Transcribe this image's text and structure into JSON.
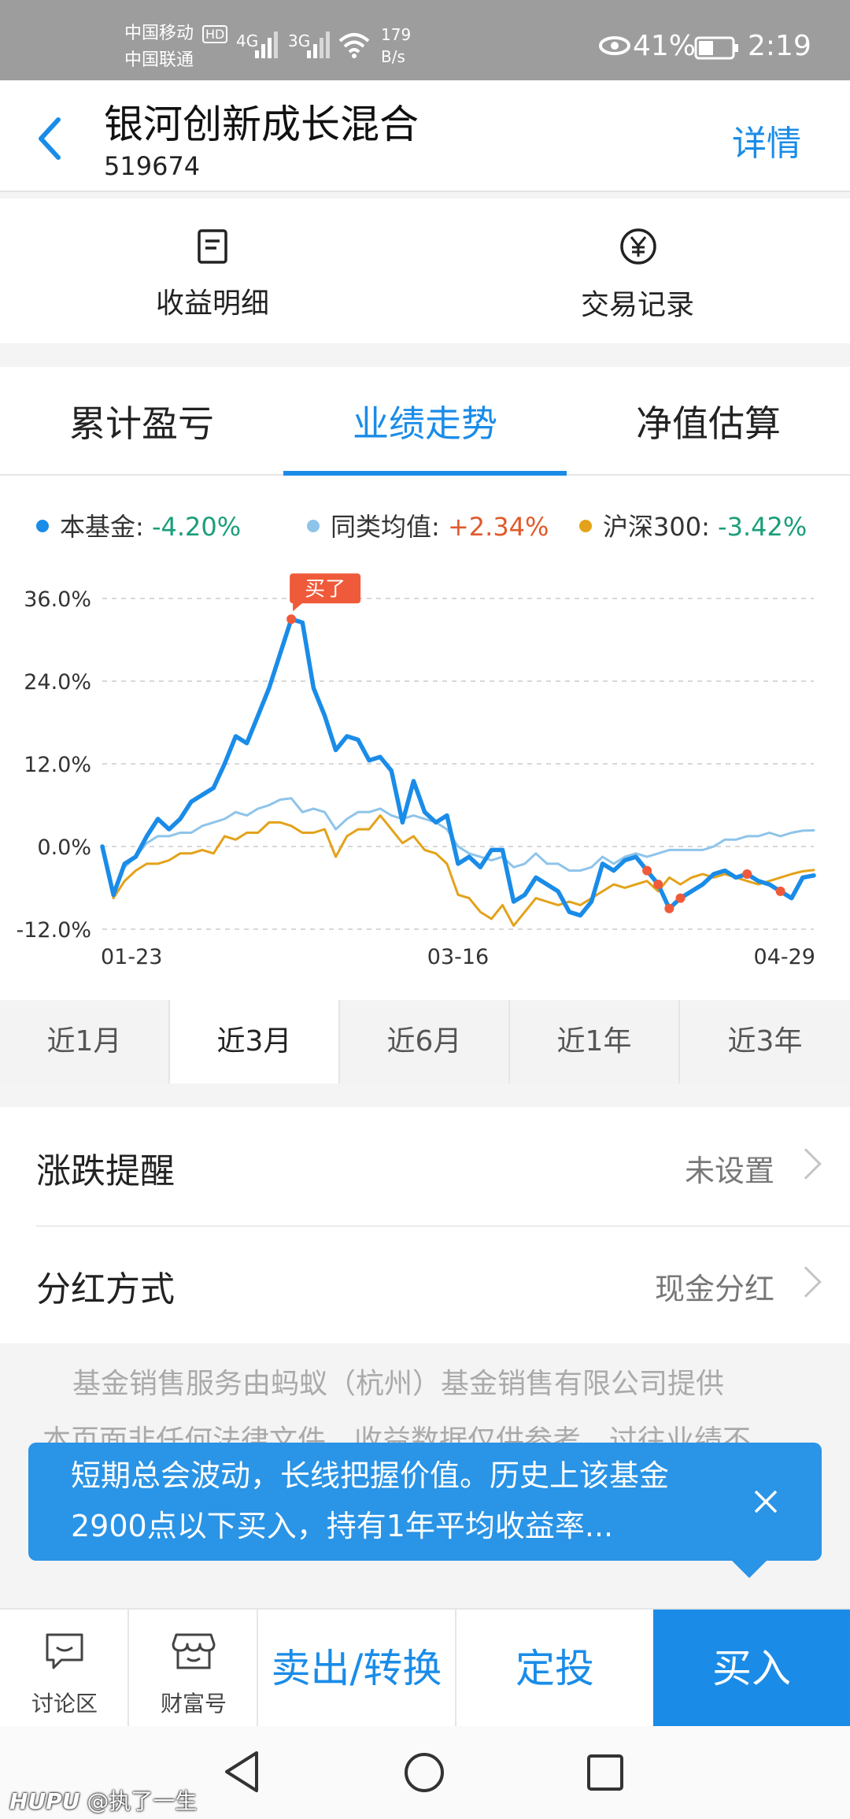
{
  "status_bar": {
    "carrier1": "中国移动",
    "carrier1_badge": "HD",
    "carrier2": "中国联通",
    "net1": "4G",
    "net2": "3G",
    "speed": "179",
    "speed_unit": "B/s",
    "battery": "41%",
    "time": "2:19"
  },
  "header": {
    "title": "银河创新成长混合",
    "code": "519674",
    "detail": "详情"
  },
  "actions": {
    "income_detail": "收益明细",
    "trade_record": "交易记录"
  },
  "perf": {
    "tabs": [
      "累计盈亏",
      "业绩走势",
      "净值估算"
    ],
    "active_tab": 1,
    "legend": [
      {
        "label": "本基金:",
        "value": "-4.20%",
        "color": "#1a8ce8",
        "value_color": "#1a9e7a"
      },
      {
        "label": "同类均值:",
        "value": "+2.34%",
        "color": "#8ec4ea",
        "value_color": "#e05a2b"
      },
      {
        "label": "沪深300:",
        "value": "-3.42%",
        "color": "#e3a21a",
        "value_color": "#1a9e7a"
      }
    ],
    "buy_marker": "买了",
    "ranges": [
      "近1月",
      "近3月",
      "近6月",
      "近1年",
      "近3年"
    ],
    "active_range": 1
  },
  "chart_data": {
    "type": "line",
    "y_ticks": [
      "36.0%",
      "24.0%",
      "12.0%",
      "0.0%",
      "-12.0%"
    ],
    "x_ticks": [
      "01-23",
      "03-16",
      "04-29"
    ],
    "ylim": [
      -12,
      36
    ],
    "grid": true,
    "series": [
      {
        "name": "本基金",
        "color": "#1a8ce8",
        "values": [
          0,
          -7,
          -2.5,
          -1.5,
          1.5,
          4,
          2.5,
          4,
          6.5,
          7.5,
          8.5,
          12,
          16,
          15,
          19,
          23,
          28,
          33,
          32.5,
          23,
          19,
          14,
          16,
          15.5,
          12.5,
          13,
          11,
          3.5,
          9.5,
          5,
          3.5,
          4.5,
          -2.5,
          -1.5,
          -3,
          -0.5,
          -0.5,
          -8,
          -7,
          -4.5,
          -5.5,
          -6.5,
          -9.5,
          -10,
          -8,
          -2.5,
          -3.5,
          -2,
          -1.5,
          -3.5,
          -5.5,
          -9,
          -7.5,
          -6.5,
          -5.5,
          -4,
          -3.5,
          -4.5,
          -4,
          -5,
          -5.5,
          -6.5,
          -7.5,
          -4.5,
          -4.2
        ]
      },
      {
        "name": "同类均值",
        "color": "#8ec4ea",
        "values": [
          0,
          -6.5,
          -3,
          -1.5,
          0.5,
          1.5,
          1.5,
          2,
          2,
          3,
          3.5,
          4,
          5,
          4.5,
          5.5,
          6,
          6.8,
          7,
          5,
          5.5,
          5,
          2.5,
          4,
          5,
          5,
          5.5,
          4.5,
          4,
          4.5,
          4,
          3.5,
          2.5,
          0,
          -1,
          -1.5,
          -2,
          -1.5,
          -3,
          -2.5,
          -1,
          -2.5,
          -2.5,
          -3.5,
          -3.5,
          -3,
          -1.5,
          -2.5,
          -1.5,
          -1,
          -1.5,
          -1,
          -0.5,
          -0.5,
          -0.5,
          -0.5,
          0,
          1,
          1,
          1.5,
          1.5,
          2,
          1.5,
          2,
          2.3,
          2.34
        ]
      },
      {
        "name": "沪深300",
        "color": "#e3a21a",
        "values": [
          0,
          -7.5,
          -5,
          -3.5,
          -2.5,
          -2.5,
          -2,
          -1,
          -1,
          -0.5,
          -1,
          1.5,
          1,
          2,
          2,
          3.5,
          3.5,
          3,
          2,
          2,
          2.5,
          -1.5,
          1.5,
          2.5,
          2.5,
          4.5,
          2.5,
          0.5,
          1.5,
          -0.5,
          -1,
          -2.5,
          -7,
          -7.5,
          -9.5,
          -10.5,
          -8.5,
          -11.5,
          -9.5,
          -7.5,
          -8,
          -8.5,
          -8,
          -8.5,
          -7.5,
          -6.5,
          -5.5,
          -6,
          -5.5,
          -5,
          -6.5,
          -4.5,
          -5.5,
          -4.5,
          -4,
          -4.5,
          -4,
          -4.5,
          -5,
          -5.5,
          -5,
          -4.5,
          -4,
          -3.6,
          -3.42
        ]
      }
    ]
  },
  "settings": {
    "alert_label": "涨跌提醒",
    "alert_value": "未设置",
    "dividend_label": "分红方式",
    "dividend_value": "现金分红"
  },
  "footnote": {
    "line1": "基金销售服务由蚂蚁（杭州）基金销售有限公司提供",
    "line2": "本页面非任何法律文件，收益数据仅供参考，过往业绩不"
  },
  "toast": {
    "line1": "短期总会波动，长线把握价值。历史上该基金",
    "line2": "2900点以下买入，持有1年平均收益率..."
  },
  "bottom_bar": {
    "discuss": "讨论区",
    "wealth": "财富号",
    "sell": "卖出/转换",
    "auto_invest": "定投",
    "buy": "买入"
  },
  "watermark": {
    "brand": "HUPU",
    "user": "@执了一生"
  }
}
